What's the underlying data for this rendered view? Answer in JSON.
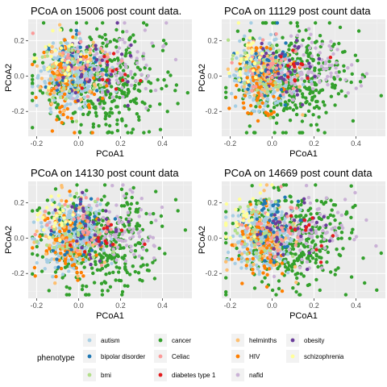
{
  "figure": {
    "legend_title": "phenotype",
    "legend_position": "bottom",
    "grid": true
  },
  "phenotypes": [
    {
      "name": "autism",
      "color": "#a6cee3"
    },
    {
      "name": "bipolar disorder",
      "color": "#1f78b4"
    },
    {
      "name": "bmi",
      "color": "#b2df8a"
    },
    {
      "name": "cancer",
      "color": "#33a02c"
    },
    {
      "name": "Celiac",
      "color": "#fb9a99"
    },
    {
      "name": "diabetes type 1",
      "color": "#e31a1c"
    },
    {
      "name": "helminths",
      "color": "#fdbf6f"
    },
    {
      "name": "HIV",
      "color": "#ff7f00"
    },
    {
      "name": "nafld",
      "color": "#cab2d6"
    },
    {
      "name": "obesity",
      "color": "#6a3d9a"
    },
    {
      "name": "schizophrenia",
      "color": "#ffff99"
    }
  ],
  "chart_data": [
    {
      "type": "scatter",
      "title": "PCoA on 15006 post count data.",
      "xlabel": "PCoA1",
      "ylabel": "PCoA2",
      "xlim": [
        -0.24,
        0.54
      ],
      "ylim": [
        -0.34,
        0.32
      ],
      "xticks": [
        -0.2,
        0.0,
        0.2,
        0.4
      ],
      "xtick_labels": [
        "-0.2",
        "0.0",
        "0.2",
        "0.4"
      ],
      "yticks": [
        -0.2,
        0.0,
        0.2
      ],
      "ytick_labels": [
        "-0.2",
        "0.0",
        "0.2"
      ],
      "seed": 15006,
      "series": [
        {
          "phenotype": "cancer",
          "n": 380,
          "cx": 0.1,
          "cy": -0.02,
          "sx": 0.14,
          "sy": 0.14
        },
        {
          "phenotype": "autism",
          "n": 260,
          "cx": -0.04,
          "cy": 0.01,
          "sx": 0.07,
          "sy": 0.09
        },
        {
          "phenotype": "nafld",
          "n": 80,
          "cx": 0.2,
          "cy": 0.04,
          "sx": 0.1,
          "sy": 0.1
        },
        {
          "phenotype": "HIV",
          "n": 90,
          "cx": -0.05,
          "cy": -0.03,
          "sx": 0.06,
          "sy": 0.11
        },
        {
          "phenotype": "helminths",
          "n": 50,
          "cx": -0.03,
          "cy": 0.03,
          "sx": 0.08,
          "sy": 0.11
        },
        {
          "phenotype": "bipolar disorder",
          "n": 40,
          "cx": -0.01,
          "cy": 0.05,
          "sx": 0.06,
          "sy": 0.1
        },
        {
          "phenotype": "obesity",
          "n": 40,
          "cx": 0.06,
          "cy": 0.06,
          "sx": 0.08,
          "sy": 0.1
        },
        {
          "phenotype": "Celiac",
          "n": 35,
          "cx": 0.0,
          "cy": 0.05,
          "sx": 0.08,
          "sy": 0.1
        },
        {
          "phenotype": "bmi",
          "n": 30,
          "cx": -0.05,
          "cy": 0.02,
          "sx": 0.07,
          "sy": 0.1
        },
        {
          "phenotype": "schizophrenia",
          "n": 25,
          "cx": -0.12,
          "cy": 0.1,
          "sx": 0.06,
          "sy": 0.08
        },
        {
          "phenotype": "diabetes type 1",
          "n": 12,
          "cx": 0.15,
          "cy": 0.02,
          "sx": 0.07,
          "sy": 0.06
        }
      ]
    },
    {
      "type": "scatter",
      "title": "PCoA on 11129 post count data",
      "xlabel": "PCoA1",
      "ylabel": "PCoA2",
      "xlim": [
        -0.24,
        0.54
      ],
      "ylim": [
        -0.34,
        0.32
      ],
      "xticks": [
        -0.2,
        0.0,
        0.2,
        0.4
      ],
      "xtick_labels": [
        "-0.2",
        "0.0",
        "0.2",
        "0.4"
      ],
      "yticks": [
        -0.2,
        0.0,
        0.2
      ],
      "ytick_labels": [
        "-0.2",
        "0.0",
        "0.2"
      ],
      "seed": 11129,
      "series": [
        {
          "phenotype": "cancer",
          "n": 380,
          "cx": 0.1,
          "cy": -0.02,
          "sx": 0.14,
          "sy": 0.14
        },
        {
          "phenotype": "autism",
          "n": 260,
          "cx": -0.04,
          "cy": 0.01,
          "sx": 0.07,
          "sy": 0.09
        },
        {
          "phenotype": "nafld",
          "n": 80,
          "cx": 0.2,
          "cy": 0.04,
          "sx": 0.1,
          "sy": 0.1
        },
        {
          "phenotype": "HIV",
          "n": 90,
          "cx": -0.05,
          "cy": -0.03,
          "sx": 0.06,
          "sy": 0.11
        },
        {
          "phenotype": "helminths",
          "n": 50,
          "cx": -0.03,
          "cy": 0.03,
          "sx": 0.08,
          "sy": 0.11
        },
        {
          "phenotype": "bipolar disorder",
          "n": 40,
          "cx": -0.01,
          "cy": 0.05,
          "sx": 0.06,
          "sy": 0.1
        },
        {
          "phenotype": "obesity",
          "n": 40,
          "cx": 0.06,
          "cy": 0.06,
          "sx": 0.08,
          "sy": 0.1
        },
        {
          "phenotype": "Celiac",
          "n": 35,
          "cx": 0.0,
          "cy": 0.05,
          "sx": 0.08,
          "sy": 0.1
        },
        {
          "phenotype": "bmi",
          "n": 30,
          "cx": -0.05,
          "cy": 0.02,
          "sx": 0.07,
          "sy": 0.1
        },
        {
          "phenotype": "schizophrenia",
          "n": 25,
          "cx": -0.12,
          "cy": 0.1,
          "sx": 0.06,
          "sy": 0.08
        },
        {
          "phenotype": "diabetes type 1",
          "n": 12,
          "cx": 0.15,
          "cy": 0.02,
          "sx": 0.07,
          "sy": 0.06
        }
      ]
    },
    {
      "type": "scatter",
      "title": "PCoA on 14130 post count data",
      "xlabel": "PCoA1",
      "ylabel": "PCoA2",
      "xlim": [
        -0.24,
        0.54
      ],
      "ylim": [
        -0.34,
        0.32
      ],
      "xticks": [
        -0.2,
        0.0,
        0.2,
        0.4
      ],
      "xtick_labels": [
        "-0.2",
        "0.0",
        "0.2",
        "0.4"
      ],
      "yticks": [
        -0.2,
        0.0,
        0.2
      ],
      "ytick_labels": [
        "-0.2",
        "0.0",
        "0.2"
      ],
      "seed": 14130,
      "series": [
        {
          "phenotype": "cancer",
          "n": 380,
          "cx": 0.1,
          "cy": -0.02,
          "sx": 0.14,
          "sy": 0.14
        },
        {
          "phenotype": "autism",
          "n": 260,
          "cx": -0.04,
          "cy": 0.01,
          "sx": 0.07,
          "sy": 0.09
        },
        {
          "phenotype": "nafld",
          "n": 80,
          "cx": 0.2,
          "cy": 0.04,
          "sx": 0.1,
          "sy": 0.1
        },
        {
          "phenotype": "HIV",
          "n": 90,
          "cx": -0.05,
          "cy": -0.03,
          "sx": 0.06,
          "sy": 0.11
        },
        {
          "phenotype": "helminths",
          "n": 50,
          "cx": -0.03,
          "cy": 0.03,
          "sx": 0.08,
          "sy": 0.11
        },
        {
          "phenotype": "bipolar disorder",
          "n": 40,
          "cx": -0.01,
          "cy": 0.05,
          "sx": 0.06,
          "sy": 0.1
        },
        {
          "phenotype": "obesity",
          "n": 40,
          "cx": 0.06,
          "cy": 0.06,
          "sx": 0.08,
          "sy": 0.1
        },
        {
          "phenotype": "Celiac",
          "n": 35,
          "cx": 0.0,
          "cy": 0.05,
          "sx": 0.08,
          "sy": 0.1
        },
        {
          "phenotype": "bmi",
          "n": 30,
          "cx": -0.05,
          "cy": 0.02,
          "sx": 0.07,
          "sy": 0.1
        },
        {
          "phenotype": "schizophrenia",
          "n": 25,
          "cx": -0.12,
          "cy": 0.1,
          "sx": 0.06,
          "sy": 0.08
        },
        {
          "phenotype": "diabetes type 1",
          "n": 12,
          "cx": 0.15,
          "cy": 0.02,
          "sx": 0.07,
          "sy": 0.06
        }
      ]
    },
    {
      "type": "scatter",
      "title": "PCoA on 14669 post count data",
      "xlabel": "PCoA1",
      "ylabel": "PCoA2",
      "xlim": [
        -0.24,
        0.54
      ],
      "ylim": [
        -0.34,
        0.32
      ],
      "xticks": [
        -0.2,
        0.0,
        0.2,
        0.4
      ],
      "xtick_labels": [
        "-0.2",
        "0.0",
        "0.2",
        "0.4"
      ],
      "yticks": [
        -0.2,
        0.0,
        0.2
      ],
      "ytick_labels": [
        "-0.2",
        "0.0",
        "0.2"
      ],
      "seed": 14669,
      "series": [
        {
          "phenotype": "cancer",
          "n": 380,
          "cx": 0.1,
          "cy": -0.02,
          "sx": 0.14,
          "sy": 0.14
        },
        {
          "phenotype": "autism",
          "n": 260,
          "cx": -0.04,
          "cy": 0.01,
          "sx": 0.07,
          "sy": 0.09
        },
        {
          "phenotype": "nafld",
          "n": 80,
          "cx": 0.2,
          "cy": 0.04,
          "sx": 0.1,
          "sy": 0.1
        },
        {
          "phenotype": "HIV",
          "n": 90,
          "cx": -0.05,
          "cy": -0.03,
          "sx": 0.06,
          "sy": 0.11
        },
        {
          "phenotype": "helminths",
          "n": 50,
          "cx": -0.03,
          "cy": 0.03,
          "sx": 0.08,
          "sy": 0.11
        },
        {
          "phenotype": "bipolar disorder",
          "n": 40,
          "cx": -0.01,
          "cy": 0.05,
          "sx": 0.06,
          "sy": 0.1
        },
        {
          "phenotype": "obesity",
          "n": 40,
          "cx": 0.06,
          "cy": 0.06,
          "sx": 0.08,
          "sy": 0.1
        },
        {
          "phenotype": "Celiac",
          "n": 35,
          "cx": 0.0,
          "cy": 0.05,
          "sx": 0.08,
          "sy": 0.1
        },
        {
          "phenotype": "bmi",
          "n": 30,
          "cx": -0.05,
          "cy": 0.02,
          "sx": 0.07,
          "sy": 0.1
        },
        {
          "phenotype": "schizophrenia",
          "n": 25,
          "cx": -0.12,
          "cy": 0.1,
          "sx": 0.06,
          "sy": 0.08
        },
        {
          "phenotype": "diabetes type 1",
          "n": 12,
          "cx": 0.15,
          "cy": 0.02,
          "sx": 0.07,
          "sy": 0.06
        }
      ]
    }
  ]
}
